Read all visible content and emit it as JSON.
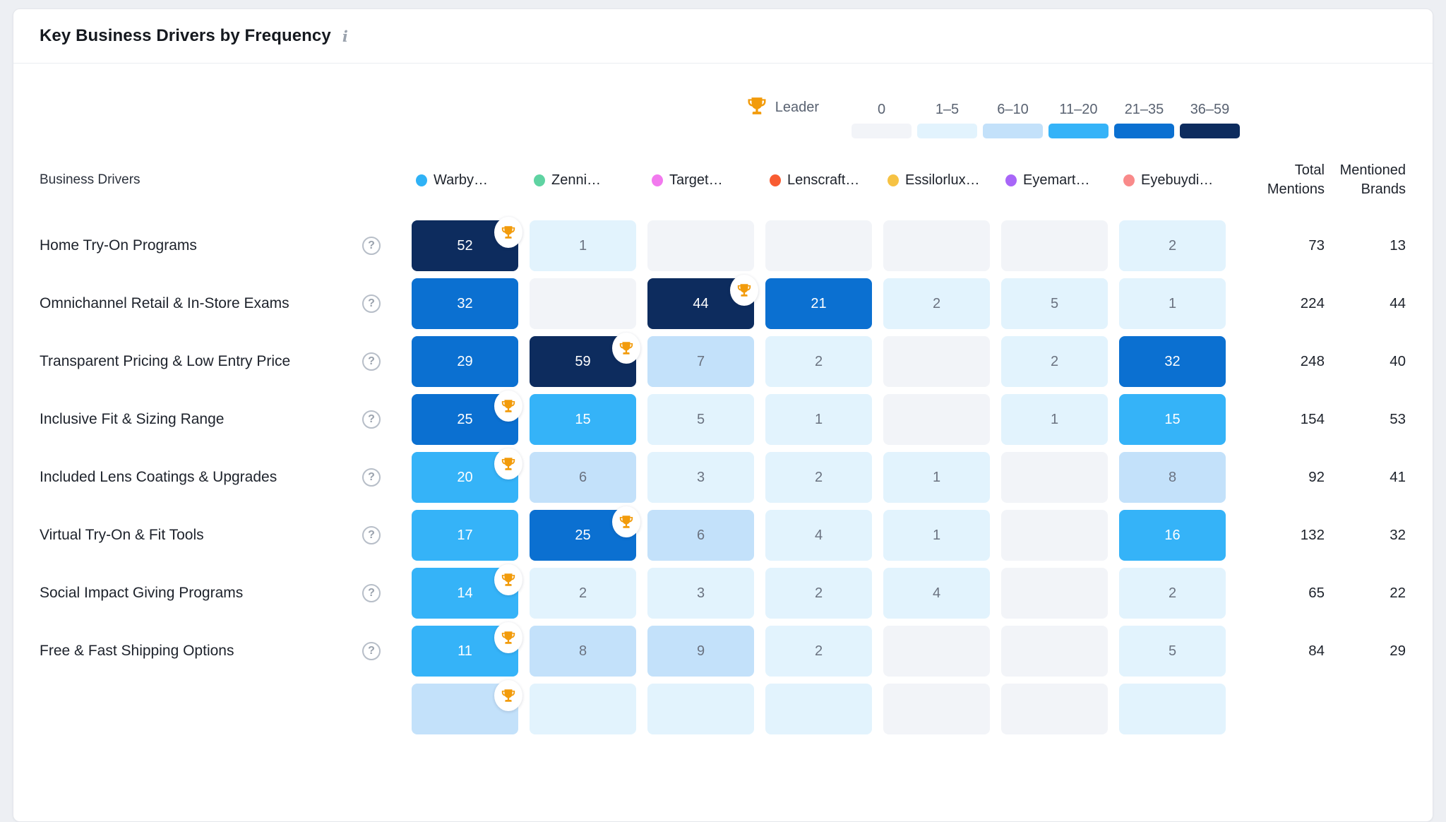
{
  "header": {
    "title": "Key Business Drivers by Frequency",
    "info_glyph": "i"
  },
  "legend": {
    "leader_label": "Leader",
    "ranges": [
      {
        "label": "0",
        "color": "#f2f4f8"
      },
      {
        "label": "1–5",
        "color": "#e2f3fd"
      },
      {
        "label": "6–10",
        "color": "#c3e1fa"
      },
      {
        "label": "11–20",
        "color": "#35b3f8"
      },
      {
        "label": "21–35",
        "color": "#0b70d1"
      },
      {
        "label": "36–59",
        "color": "#0d2c5e"
      }
    ],
    "trophy_color": "#F29B0B"
  },
  "table": {
    "row_header": "Business Drivers",
    "help_glyph": "?",
    "total_header": "Total Mentions",
    "brands_header": "Mentioned Brands",
    "columns": [
      {
        "label": "Warby…",
        "dot_color": "#2fb2f6"
      },
      {
        "label": "Zenni…",
        "dot_color": "#5fd3a2"
      },
      {
        "label": "Target…",
        "dot_color": "#f279ee"
      },
      {
        "label": "Lenscraft…",
        "dot_color": "#f85c32"
      },
      {
        "label": "Essilorlux…",
        "dot_color": "#f6c243"
      },
      {
        "label": "Eyemart…",
        "dot_color": "#a866f8"
      },
      {
        "label": "Eyebuydi…",
        "dot_color": "#f98a8a"
      }
    ],
    "rows": [
      {
        "label": "Home Try-On Programs",
        "cells": [
          {
            "v": 52,
            "leader": true
          },
          {
            "v": 1
          },
          {
            "v": 0
          },
          {
            "v": 0
          },
          {
            "v": 0
          },
          {
            "v": 0
          },
          {
            "v": 2
          }
        ],
        "total": 73,
        "brands": 13
      },
      {
        "label": "Omnichannel Retail & In-Store Exams",
        "cells": [
          {
            "v": 32
          },
          {
            "v": 0
          },
          {
            "v": 44,
            "leader": true
          },
          {
            "v": 21
          },
          {
            "v": 2
          },
          {
            "v": 5
          },
          {
            "v": 1
          }
        ],
        "total": 224,
        "brands": 44
      },
      {
        "label": "Transparent Pricing & Low Entry Price",
        "cells": [
          {
            "v": 29
          },
          {
            "v": 59,
            "leader": true
          },
          {
            "v": 7
          },
          {
            "v": 2
          },
          {
            "v": 0
          },
          {
            "v": 2
          },
          {
            "v": 32
          }
        ],
        "total": 248,
        "brands": 40
      },
      {
        "label": "Inclusive Fit & Sizing Range",
        "cells": [
          {
            "v": 25,
            "leader": true
          },
          {
            "v": 15
          },
          {
            "v": 5
          },
          {
            "v": 1
          },
          {
            "v": 0
          },
          {
            "v": 1
          },
          {
            "v": 15
          }
        ],
        "total": 154,
        "brands": 53
      },
      {
        "label": "Included Lens Coatings & Upgrades",
        "cells": [
          {
            "v": 20,
            "leader": true
          },
          {
            "v": 6
          },
          {
            "v": 3
          },
          {
            "v": 2
          },
          {
            "v": 1
          },
          {
            "v": 0
          },
          {
            "v": 8
          }
        ],
        "total": 92,
        "brands": 41
      },
      {
        "label": "Virtual Try-On & Fit Tools",
        "cells": [
          {
            "v": 17
          },
          {
            "v": 25,
            "leader": true
          },
          {
            "v": 6
          },
          {
            "v": 4
          },
          {
            "v": 1
          },
          {
            "v": 0
          },
          {
            "v": 16
          }
        ],
        "total": 132,
        "brands": 32
      },
      {
        "label": "Social Impact Giving Programs",
        "cells": [
          {
            "v": 14,
            "leader": true
          },
          {
            "v": 2
          },
          {
            "v": 3
          },
          {
            "v": 2
          },
          {
            "v": 4
          },
          {
            "v": 0
          },
          {
            "v": 2
          }
        ],
        "total": 65,
        "brands": 22
      },
      {
        "label": "Free & Fast Shipping Options",
        "cells": [
          {
            "v": 11,
            "leader": true
          },
          {
            "v": 8
          },
          {
            "v": 9
          },
          {
            "v": 2
          },
          {
            "v": 0
          },
          {
            "v": 0
          },
          {
            "v": 5
          }
        ],
        "total": 84,
        "brands": 29
      }
    ],
    "partial_row": {
      "cell_levels": [
        2,
        1,
        1,
        1,
        0,
        0,
        1
      ],
      "leader_col": 0
    }
  },
  "chart_data": {
    "type": "heatmap",
    "title": "Key Business Drivers by Frequency",
    "rows": [
      "Home Try-On Programs",
      "Omnichannel Retail & In-Store Exams",
      "Transparent Pricing & Low Entry Price",
      "Inclusive Fit & Sizing Range",
      "Included Lens Coatings & Upgrades",
      "Virtual Try-On & Fit Tools",
      "Social Impact Giving Programs",
      "Free & Fast Shipping Options"
    ],
    "columns": [
      "Warby…",
      "Zenni…",
      "Target…",
      "Lenscraft…",
      "Essilorlux…",
      "Eyemart…",
      "Eyebuydi…"
    ],
    "values": [
      [
        52,
        1,
        0,
        0,
        0,
        0,
        2
      ],
      [
        32,
        0,
        44,
        21,
        2,
        5,
        1
      ],
      [
        29,
        59,
        7,
        2,
        0,
        2,
        32
      ],
      [
        25,
        15,
        5,
        1,
        0,
        1,
        15
      ],
      [
        20,
        6,
        3,
        2,
        1,
        0,
        8
      ],
      [
        17,
        25,
        6,
        4,
        1,
        0,
        16
      ],
      [
        14,
        2,
        3,
        2,
        4,
        0,
        2
      ],
      [
        11,
        8,
        9,
        2,
        0,
        0,
        5
      ]
    ],
    "leader_column_per_row": [
      0,
      2,
      1,
      0,
      0,
      1,
      0,
      0
    ],
    "total_mentions": [
      73,
      224,
      248,
      154,
      92,
      132,
      65,
      84
    ],
    "mentioned_brands": [
      13,
      44,
      40,
      53,
      41,
      32,
      22,
      29
    ],
    "legend_bins": [
      "0",
      "1–5",
      "6–10",
      "11–20",
      "21–35",
      "36–59"
    ],
    "legend_colors": [
      "#f2f4f8",
      "#e2f3fd",
      "#c3e1fa",
      "#35b3f8",
      "#0b70d1",
      "#0d2c5e"
    ],
    "legend_position": "top-right"
  }
}
